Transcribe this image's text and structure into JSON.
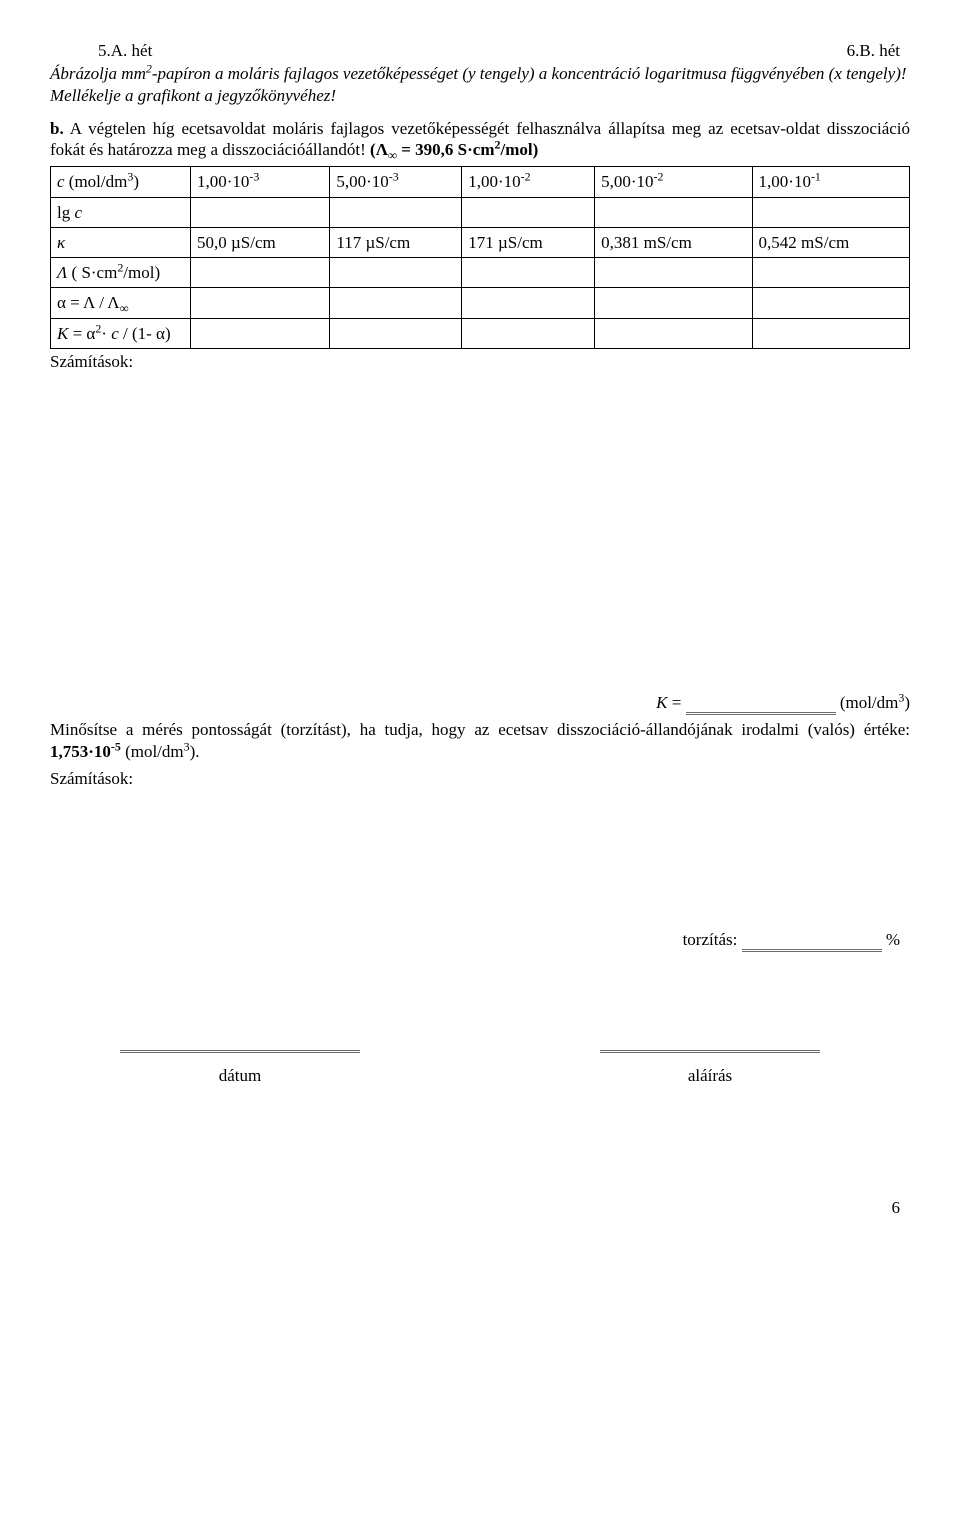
{
  "header": {
    "left": "5.A. hét",
    "right": "6.B. hét"
  },
  "intro_html": "Ábrázolja mm<sup>2</sup>-papíron a moláris fajlagos vezetőképességet (y tengely) a koncentráció logaritmusa függvényében (x tengely)! Mellékelje a grafikont a jegyzőkönyvéhez!",
  "para_b_label": "b.",
  "para_b_html": "A végtelen híg ecetsavoldat moláris fajlagos vezetőképességét felhasználva állapítsa meg az ecetsav-oldat disszociáció fokát és határozza meg a disszociációállandót!  <span class=\"bold\">(Λ<sub>∞</sub> = 390,6 S·cm<sup>2</sup>/mol)</span>",
  "table": {
    "rows": [
      {
        "label_html": "<span class=\"italic\">c</span> (mol/dm<sup>3</sup>)",
        "cells": [
          "1,00·10<sup>-3</sup>",
          "5,00·10<sup>-3</sup>",
          "1,00·10<sup>-2</sup>",
          "5,00·10<sup>-2</sup>",
          "1,00·10<sup>-1</sup>"
        ]
      },
      {
        "label_html": "lg <span class=\"italic\">c</span>",
        "cells": [
          "",
          "",
          "",
          "",
          ""
        ]
      },
      {
        "label_html": "<span class=\"italic\" style=\"font-family:Georgia,serif\">κ</span>",
        "cells": [
          "50,0 µS/cm",
          "117 µS/cm",
          "171 µS/cm",
          "0,381 mS/cm",
          "0,542 mS/cm"
        ]
      },
      {
        "label_html": "<span class=\"lambda-i\">Λ</span> ( S·cm<sup>2</sup>/mol)",
        "cells": [
          "",
          "",
          "",
          "",
          ""
        ]
      },
      {
        "label_html": "α = Λ / Λ<sub>∞</sub>",
        "cells": [
          "",
          "",
          "",
          "",
          ""
        ]
      },
      {
        "label_html": "<span class=\"italic\">K</span> = α<sup>2</sup>· <span class=\"italic\">c</span> / (1- α)",
        "cells": [
          "",
          "",
          "",
          "",
          ""
        ]
      }
    ]
  },
  "calc_label": "Számítások:",
  "k_prefix_html": "<span class=\"italic\">K</span> = ",
  "k_unit_html": " (mol/dm<sup>3</sup>)",
  "quality_html": "Minősítse a mérés pontosságát (torzítást), ha tudja, hogy az ecetsav disszociáció-állandójának irodalmi (valós) értéke: <span class=\"bold\">1,753·10<sup>-5</sup></span> (mol/dm<sup>3</sup>).",
  "torz_label": "torzítás:",
  "torz_unit": "%",
  "sig": {
    "date": "dátum",
    "sign": "aláírás"
  },
  "page": "6"
}
